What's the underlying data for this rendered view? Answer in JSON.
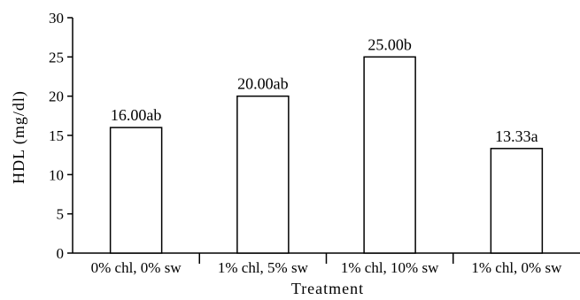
{
  "chart_data": {
    "type": "bar",
    "categories": [
      "0% chl, 0% sw",
      "1% chl, 5% sw",
      "1% chl, 10% sw",
      "1% chl, 0% sw"
    ],
    "values": [
      16.0,
      20.0,
      25.0,
      13.33
    ],
    "data_labels": [
      "16.00ab",
      "20.00ab",
      "25.00b",
      "13.33a"
    ],
    "xlabel": "Treatment",
    "ylabel": "HDL (mg/dl)",
    "ylim": [
      0,
      30
    ],
    "yticks": [
      0,
      5,
      10,
      15,
      20,
      25,
      30
    ],
    "grid": false,
    "legend": "none",
    "bar_fill": "#ffffff",
    "bar_stroke": "#000000"
  }
}
